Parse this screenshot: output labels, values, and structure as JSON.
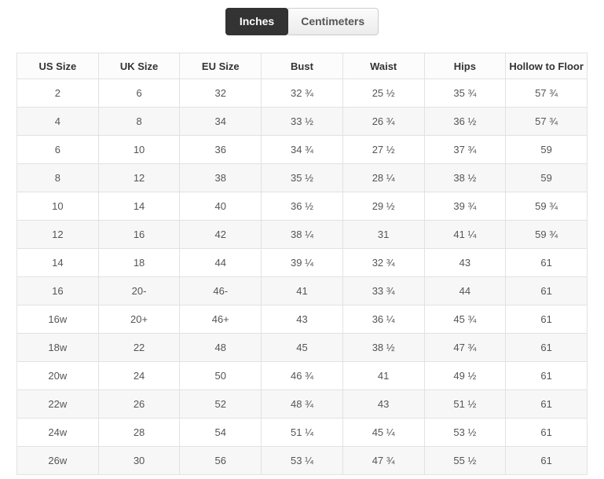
{
  "tabs": {
    "inches_label": "Inches",
    "centimeters_label": "Centimeters",
    "active_tab": "Inches"
  },
  "table": {
    "columns": [
      "US Size",
      "UK Size",
      "EU Size",
      "Bust",
      "Waist",
      "Hips",
      "Hollow to Floor"
    ],
    "rows": [
      [
        "2",
        "6",
        "32",
        "32 ¾",
        "25 ½",
        "35 ¾",
        "57 ¾"
      ],
      [
        "4",
        "8",
        "34",
        "33 ½",
        "26 ¾",
        "36 ½",
        "57 ¾"
      ],
      [
        "6",
        "10",
        "36",
        "34 ¾",
        "27 ½",
        "37 ¾",
        "59"
      ],
      [
        "8",
        "12",
        "38",
        "35 ½",
        "28 ¼",
        "38 ½",
        "59"
      ],
      [
        "10",
        "14",
        "40",
        "36 ½",
        "29 ½",
        "39 ¾",
        "59 ¾"
      ],
      [
        "12",
        "16",
        "42",
        "38 ¼",
        "31",
        "41 ¼",
        "59 ¾"
      ],
      [
        "14",
        "18",
        "44",
        "39 ¼",
        "32 ¾",
        "43",
        "61"
      ],
      [
        "16",
        "20-",
        "46-",
        "41",
        "33 ¾",
        "44",
        "61"
      ],
      [
        "16w",
        "20+",
        "46+",
        "43",
        "36 ¼",
        "45 ¾",
        "61"
      ],
      [
        "18w",
        "22",
        "48",
        "45",
        "38 ½",
        "47 ¾",
        "61"
      ],
      [
        "20w",
        "24",
        "50",
        "46 ¾",
        "41",
        "49 ½",
        "61"
      ],
      [
        "22w",
        "26",
        "52",
        "48 ¾",
        "43",
        "51 ½",
        "61"
      ],
      [
        "24w",
        "28",
        "54",
        "51 ¼",
        "45 ¼",
        "53 ½",
        "61"
      ],
      [
        "26w",
        "30",
        "56",
        "53 ¼",
        "47 ¾",
        "55 ½",
        "61"
      ]
    ]
  },
  "colors": {
    "tab_active_bg": "#333333",
    "tab_active_text": "#ffffff",
    "tab_inactive_border": "#cccccc",
    "table_border": "#e2e2e2",
    "row_stripe": "#f7f7f7"
  }
}
